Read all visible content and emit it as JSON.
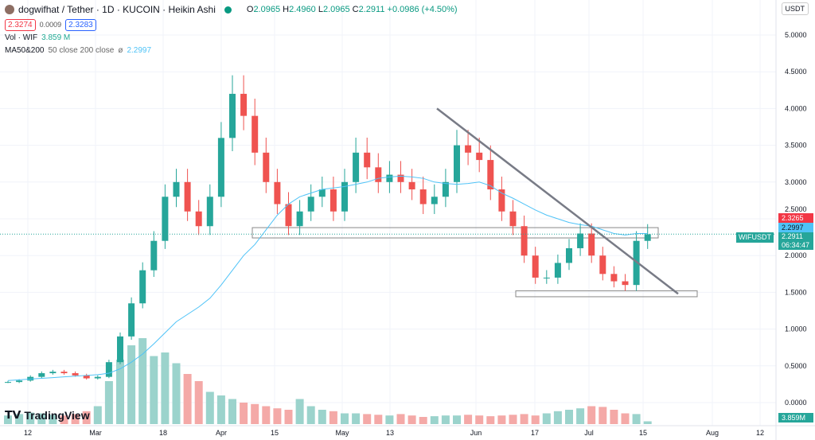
{
  "header": {
    "title": "dogwifhat / Tether · 1D · KUCOIN · Heikin Ashi",
    "o_label": "O",
    "o": "2.0965",
    "h_label": "H",
    "h": "2.4960",
    "l_label": "L",
    "l": "2.0965",
    "c_label": "C",
    "c": "2.2911",
    "change": "+0.0986 (+4.50%)",
    "sell": "2.3274",
    "spread": "0.0009",
    "buy": "2.3283"
  },
  "indicators": {
    "vol_label": "Vol · WIF",
    "vol_value": "3.859 M",
    "ma_label": "MA50&200",
    "ma_params": "50 close 200 close",
    "ma_symbol": "ø",
    "ma_value": "2.2997"
  },
  "currency": "USDT",
  "brand": "TradingView",
  "price_tags": {
    "red": "2.3265",
    "ma": "2.2997",
    "symbol": "WIFUSDT",
    "last": "2.2911",
    "countdown": "06:34:47",
    "volume": "3.859M"
  },
  "colors": {
    "up": "#26a69a",
    "down": "#ef5350",
    "ma": "#4fc3f7",
    "trend": "#787b86"
  },
  "chart_data": {
    "type": "candlestick",
    "y_ticks": [
      "5.0000",
      "4.5000",
      "4.0000",
      "3.5000",
      "3.0000",
      "2.5000",
      "2.0000",
      "1.5000",
      "1.0000",
      "0.5000",
      "0.0000"
    ],
    "x_ticks": [
      "12",
      "Mar",
      "18",
      "Apr",
      "15",
      "May",
      "13",
      "Jun",
      "17",
      "Jul",
      "15",
      "Aug",
      "12"
    ],
    "ylim": [
      0,
      5
    ],
    "close_every_3_days": [
      0.28,
      0.3,
      0.35,
      0.4,
      0.42,
      0.4,
      0.37,
      0.33,
      0.35,
      0.55,
      0.9,
      1.35,
      1.8,
      2.2,
      2.8,
      3.0,
      2.6,
      2.4,
      2.8,
      3.6,
      4.2,
      3.9,
      3.4,
      3.0,
      2.7,
      2.4,
      2.6,
      2.8,
      2.9,
      2.6,
      3.0,
      3.4,
      3.2,
      3.0,
      3.1,
      3.0,
      2.9,
      2.7,
      2.8,
      3.0,
      3.5,
      3.4,
      3.3,
      2.9,
      2.6,
      2.4,
      2.0,
      1.7,
      1.7,
      1.9,
      2.1,
      2.3,
      2.0,
      1.75,
      1.65,
      1.6,
      2.2,
      2.29
    ],
    "ma50": [
      0.3,
      0.31,
      0.32,
      0.33,
      0.34,
      0.35,
      0.36,
      0.37,
      0.38,
      0.4,
      0.46,
      0.55,
      0.66,
      0.8,
      0.95,
      1.1,
      1.2,
      1.3,
      1.42,
      1.6,
      1.8,
      2.0,
      2.15,
      2.35,
      2.55,
      2.7,
      2.8,
      2.85,
      2.9,
      2.92,
      2.94,
      2.97,
      3.0,
      3.05,
      3.07,
      3.08,
      3.07,
      3.05,
      3.0,
      2.98,
      2.97,
      2.98,
      3.0,
      2.95,
      2.85,
      2.78,
      2.7,
      2.62,
      2.55,
      2.5,
      2.45,
      2.42,
      2.4,
      2.35,
      2.3,
      2.28,
      2.3,
      2.2997
    ],
    "volume_M": [
      12,
      14,
      16,
      15,
      13,
      12,
      14,
      18,
      25,
      60,
      90,
      110,
      120,
      95,
      100,
      85,
      70,
      60,
      45,
      40,
      35,
      30,
      28,
      25,
      22,
      20,
      35,
      25,
      20,
      18,
      15,
      15,
      14,
      13,
      12,
      14,
      12,
      10,
      11,
      12,
      12,
      13,
      12,
      11,
      12,
      13,
      14,
      12,
      15,
      18,
      20,
      22,
      25,
      24,
      20,
      15,
      14,
      3.859
    ],
    "trendline": [
      {
        "date": "May 27",
        "price": 4.0
      },
      {
        "date": "Jul 21",
        "price": 1.48
      }
    ],
    "zones": [
      {
        "from": 2.24,
        "to": 2.38
      },
      {
        "from": 1.44,
        "to": 1.52
      }
    ]
  }
}
